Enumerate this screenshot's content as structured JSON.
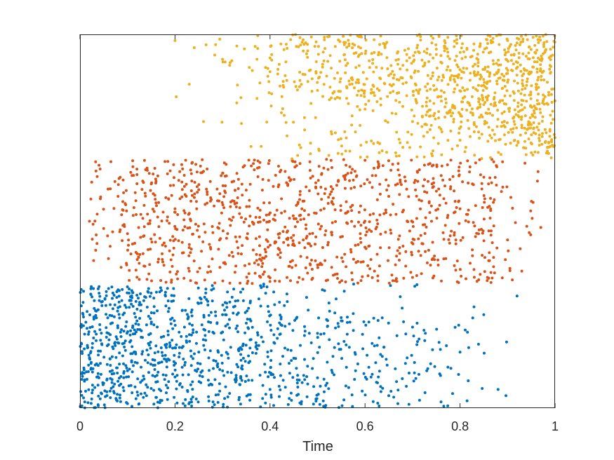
{
  "chart_data": {
    "type": "scatter",
    "title": "",
    "xlabel": "Time",
    "ylabel": "",
    "xlim": [
      0,
      1
    ],
    "ylim": [
      0,
      3
    ],
    "x_ticks": [
      "0",
      "0.2",
      "0.4",
      "0.6",
      "0.8",
      "1"
    ],
    "y_ticks": [],
    "grid": false,
    "legend": "none",
    "series": [
      {
        "color": "#0072BD",
        "y_range": [
          0,
          1
        ],
        "x_range": [
          0,
          0.9
        ],
        "approx_point_count": 1000,
        "density": "decreasing with time",
        "points": [
          [
            0.01,
            0.05
          ],
          [
            0.02,
            0.4
          ],
          [
            0.03,
            0.8
          ],
          [
            0.05,
            0.2
          ],
          [
            0.06,
            0.6
          ],
          [
            0.08,
            0.95
          ],
          [
            0.1,
            0.3
          ],
          [
            0.12,
            0.7
          ],
          [
            0.14,
            0.1
          ],
          [
            0.16,
            0.5
          ],
          [
            0.18,
            0.9
          ],
          [
            0.2,
            0.25
          ],
          [
            0.22,
            0.65
          ],
          [
            0.25,
            0.45
          ],
          [
            0.28,
            0.05
          ],
          [
            0.3,
            0.75
          ],
          [
            0.33,
            0.35
          ],
          [
            0.36,
            0.55
          ],
          [
            0.4,
            0.15
          ],
          [
            0.42,
            0.85
          ],
          [
            0.45,
            0.4
          ],
          [
            0.5,
            0.6
          ],
          [
            0.52,
            0.2
          ],
          [
            0.55,
            0.7
          ],
          [
            0.58,
            0.3
          ],
          [
            0.62,
            0.5
          ],
          [
            0.65,
            0.1
          ],
          [
            0.7,
            0.65
          ],
          [
            0.73,
            0.3
          ],
          [
            0.76,
            0.05
          ],
          [
            0.8,
            0.45
          ],
          [
            0.85,
            0.75
          ],
          [
            0.88,
            0.15
          ],
          [
            0.92,
            0.9
          ]
        ]
      },
      {
        "color": "#D95319",
        "y_range": [
          1,
          2
        ],
        "x_range": [
          0.02,
          0.97
        ],
        "approx_point_count": 1000,
        "density": "roughly uniform over 0.1–0.85",
        "points": [
          [
            0.02,
            1.5
          ],
          [
            0.04,
            1.95
          ],
          [
            0.06,
            1.2
          ],
          [
            0.08,
            1.7
          ],
          [
            0.1,
            1.4
          ],
          [
            0.12,
            1.05
          ],
          [
            0.15,
            1.8
          ],
          [
            0.18,
            1.3
          ],
          [
            0.2,
            1.6
          ],
          [
            0.23,
            1.1
          ],
          [
            0.26,
            1.9
          ],
          [
            0.29,
            1.45
          ],
          [
            0.32,
            1.25
          ],
          [
            0.35,
            1.75
          ],
          [
            0.38,
            1.05
          ],
          [
            0.41,
            1.55
          ],
          [
            0.44,
            1.85
          ],
          [
            0.47,
            1.35
          ],
          [
            0.5,
            1.15
          ],
          [
            0.53,
            1.65
          ],
          [
            0.56,
            1.95
          ],
          [
            0.59,
            1.4
          ],
          [
            0.62,
            1.1
          ],
          [
            0.65,
            1.7
          ],
          [
            0.68,
            1.3
          ],
          [
            0.71,
            1.9
          ],
          [
            0.74,
            1.5
          ],
          [
            0.77,
            1.2
          ],
          [
            0.8,
            1.6
          ],
          [
            0.83,
            1.05
          ],
          [
            0.86,
            1.8
          ],
          [
            0.9,
            1.35
          ],
          [
            0.93,
            1.1
          ],
          [
            0.97,
            1.45
          ]
        ]
      },
      {
        "color": "#EDB120",
        "y_range": [
          2,
          3
        ],
        "x_range": [
          0.2,
          1
        ],
        "approx_point_count": 1000,
        "density": "increasing with time",
        "points": [
          [
            0.2,
            2.95
          ],
          [
            0.23,
            2.6
          ],
          [
            0.26,
            2.3
          ],
          [
            0.3,
            2.8
          ],
          [
            0.33,
            2.45
          ],
          [
            0.36,
            2.1
          ],
          [
            0.4,
            2.7
          ],
          [
            0.43,
            2.35
          ],
          [
            0.46,
            2.9
          ],
          [
            0.5,
            2.55
          ],
          [
            0.53,
            2.2
          ],
          [
            0.56,
            2.75
          ],
          [
            0.6,
            2.4
          ],
          [
            0.63,
            2.05
          ],
          [
            0.66,
            2.65
          ],
          [
            0.7,
            2.3
          ],
          [
            0.73,
            2.85
          ],
          [
            0.76,
            2.5
          ],
          [
            0.8,
            2.15
          ],
          [
            0.83,
            2.7
          ],
          [
            0.86,
            2.4
          ],
          [
            0.9,
            2.95
          ],
          [
            0.93,
            2.25
          ],
          [
            0.96,
            2.6
          ],
          [
            0.99,
            2.1
          ]
        ]
      }
    ]
  }
}
